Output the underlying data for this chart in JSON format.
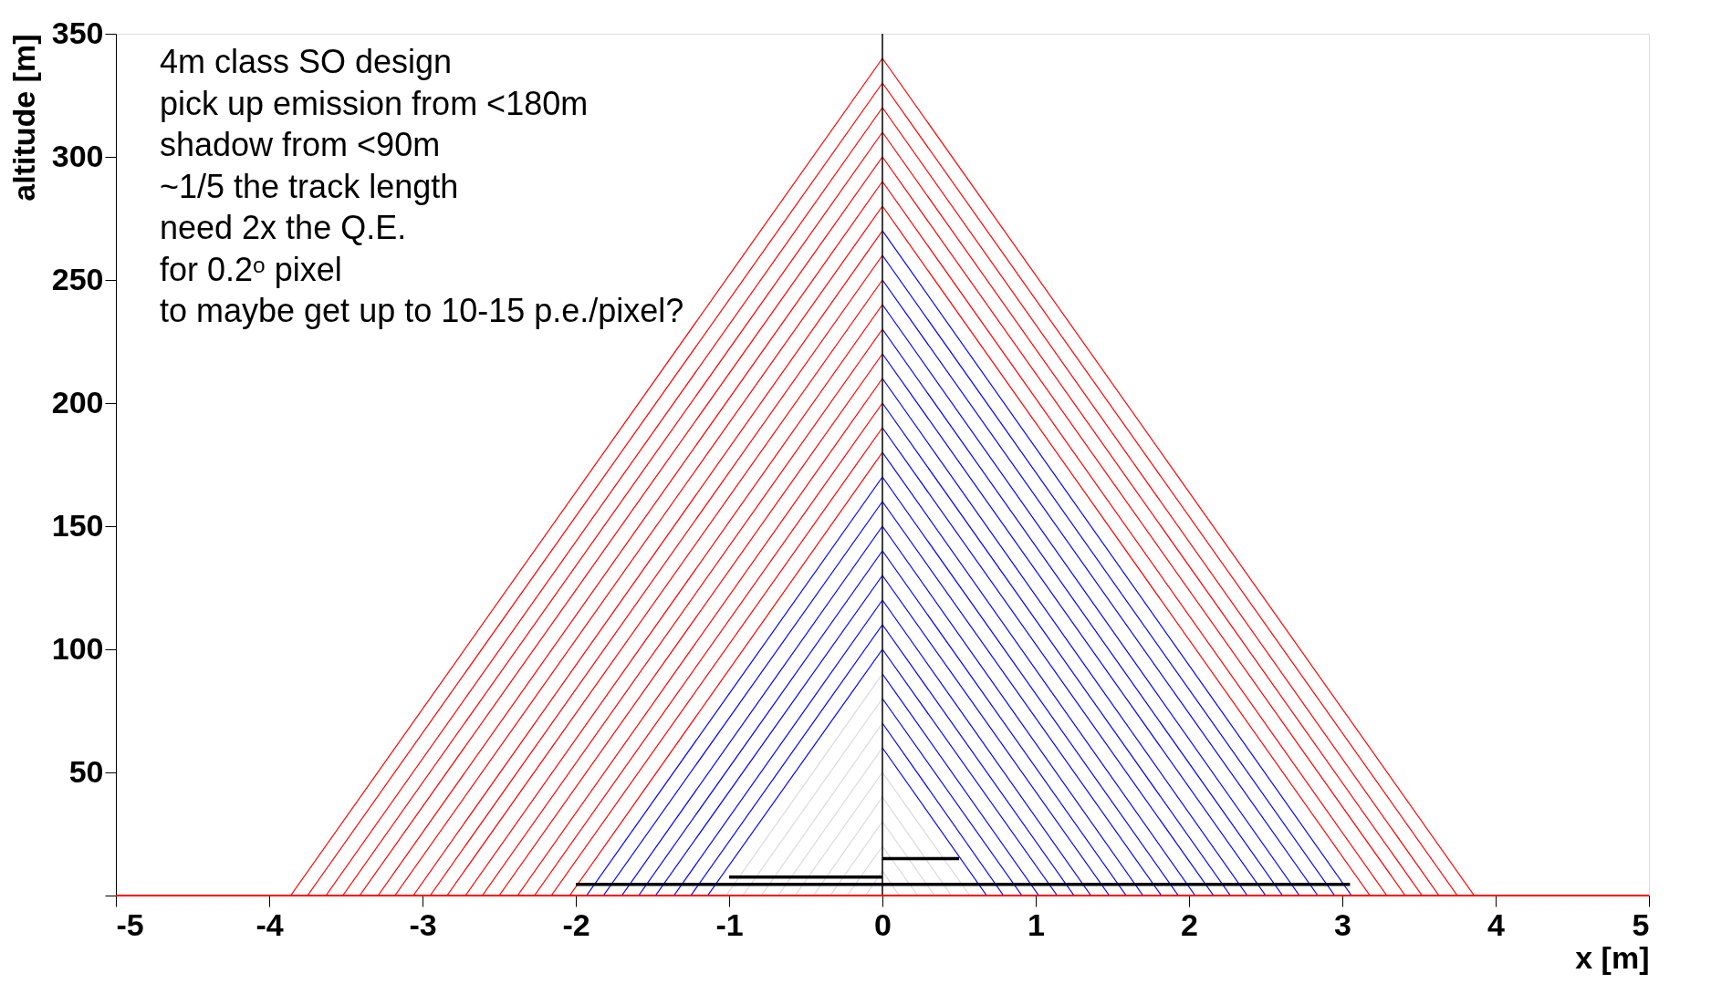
{
  "chart_data": {
    "type": "line",
    "xlabel": "x [m]",
    "ylabel": "altitude [m]",
    "xlim": [
      -5,
      5
    ],
    "xticks": [
      -5,
      -4,
      -3,
      -2,
      -1,
      0,
      1,
      2,
      3,
      4,
      5
    ],
    "ylim": [
      0,
      350
    ],
    "yticks": [
      {
        "value": 0,
        "label": null
      },
      50,
      100,
      150,
      200,
      250,
      300,
      350
    ],
    "grid": false,
    "annotations": [
      "4m class SO design",
      "pick up emission from <180m",
      "shadow from <90m",
      "~1/5 the track length",
      "need 2x the Q.E.",
      "for 0.2ᵒ pixel",
      "to maybe get up to 10-15 p.e./pixel?"
    ],
    "ref_lines": [
      {
        "axis": "x",
        "value": 0,
        "color": "#000000"
      },
      {
        "axis": "y",
        "value": 0,
        "color": "#ff0000"
      }
    ],
    "series": [
      {
        "color": "#ff0000",
        "x": [
          -3.86,
          0
        ],
        "values": [
          0,
          340
        ]
      },
      {
        "color": "#ff0000",
        "x": [
          -3.75,
          0
        ],
        "values": [
          0,
          330
        ]
      },
      {
        "color": "#ff0000",
        "x": [
          -3.63,
          0
        ],
        "values": [
          0,
          320
        ]
      },
      {
        "color": "#ff0000",
        "x": [
          -3.52,
          0
        ],
        "values": [
          0,
          310
        ]
      },
      {
        "color": "#ff0000",
        "x": [
          -3.41,
          0
        ],
        "values": [
          0,
          300
        ]
      },
      {
        "color": "#ff0000",
        "x": [
          -3.29,
          0
        ],
        "values": [
          0,
          290
        ]
      },
      {
        "color": "#ff0000",
        "x": [
          -3.18,
          0
        ],
        "values": [
          0,
          280
        ]
      },
      {
        "color": "#ff0000",
        "x": [
          -3.06,
          0
        ],
        "values": [
          0,
          270
        ]
      },
      {
        "color": "#ff0000",
        "x": [
          -2.95,
          0
        ],
        "values": [
          0,
          260
        ]
      },
      {
        "color": "#ff0000",
        "x": [
          -2.84,
          0
        ],
        "values": [
          0,
          250
        ]
      },
      {
        "color": "#ff0000",
        "x": [
          -2.72,
          0
        ],
        "values": [
          0,
          240
        ]
      },
      {
        "color": "#ff0000",
        "x": [
          -2.61,
          0
        ],
        "values": [
          0,
          230
        ]
      },
      {
        "color": "#ff0000",
        "x": [
          -2.5,
          0
        ],
        "values": [
          0,
          220
        ]
      },
      {
        "color": "#ff0000",
        "x": [
          -2.38,
          0
        ],
        "values": [
          0,
          210
        ]
      },
      {
        "color": "#ff0000",
        "x": [
          -2.27,
          0
        ],
        "values": [
          0,
          200
        ]
      },
      {
        "color": "#ff0000",
        "x": [
          -2.16,
          0
        ],
        "values": [
          0,
          190
        ]
      },
      {
        "color": "#ff0000",
        "x": [
          -2.04,
          0
        ],
        "values": [
          0,
          180
        ]
      },
      {
        "color": "#0000ff",
        "x": [
          -1.93,
          0
        ],
        "values": [
          0,
          170
        ]
      },
      {
        "color": "#0000ff",
        "x": [
          -1.82,
          0
        ],
        "values": [
          0,
          160
        ]
      },
      {
        "color": "#0000ff",
        "x": [
          -1.7,
          0
        ],
        "values": [
          0,
          150
        ]
      },
      {
        "color": "#0000ff",
        "x": [
          -1.59,
          0
        ],
        "values": [
          0,
          140
        ]
      },
      {
        "color": "#0000ff",
        "x": [
          -1.48,
          0
        ],
        "values": [
          0,
          130
        ]
      },
      {
        "color": "#0000ff",
        "x": [
          -1.36,
          0
        ],
        "values": [
          0,
          120
        ]
      },
      {
        "color": "#0000ff",
        "x": [
          -1.25,
          0
        ],
        "values": [
          0,
          110
        ]
      },
      {
        "color": "#0000ff",
        "x": [
          -1.14,
          0
        ],
        "values": [
          0,
          100
        ]
      },
      {
        "color": "#d9d9d9",
        "x": [
          -1.02,
          0
        ],
        "values": [
          0,
          90
        ]
      },
      {
        "color": "#d9d9d9",
        "x": [
          -0.91,
          0
        ],
        "values": [
          0,
          80
        ]
      },
      {
        "color": "#d9d9d9",
        "x": [
          -0.79,
          0
        ],
        "values": [
          0,
          70
        ]
      },
      {
        "color": "#d9d9d9",
        "x": [
          -0.68,
          0
        ],
        "values": [
          0,
          60
        ]
      },
      {
        "color": "#d9d9d9",
        "x": [
          -0.57,
          0
        ],
        "values": [
          0,
          50
        ]
      },
      {
        "color": "#d9d9d9",
        "x": [
          -0.45,
          0
        ],
        "values": [
          0,
          40
        ]
      },
      {
        "color": "#d9d9d9",
        "x": [
          -0.34,
          0
        ],
        "values": [
          0,
          30
        ]
      },
      {
        "color": "#d9d9d9",
        "x": [
          -0.23,
          0
        ],
        "values": [
          0,
          20
        ]
      },
      {
        "color": "#d9d9d9",
        "x": [
          -0.11,
          0
        ],
        "values": [
          0,
          10
        ]
      },
      {
        "color": "#ff0000",
        "x": [
          0,
          3.86
        ],
        "values": [
          340,
          0
        ]
      },
      {
        "color": "#ff0000",
        "x": [
          0,
          3.75
        ],
        "values": [
          330,
          0
        ]
      },
      {
        "color": "#ff0000",
        "x": [
          0,
          3.63
        ],
        "values": [
          320,
          0
        ]
      },
      {
        "color": "#ff0000",
        "x": [
          0,
          3.52
        ],
        "values": [
          310,
          0
        ]
      },
      {
        "color": "#ff0000",
        "x": [
          0,
          3.41
        ],
        "values": [
          300,
          0
        ]
      },
      {
        "color": "#ff0000",
        "x": [
          0,
          3.29
        ],
        "values": [
          290,
          0
        ]
      },
      {
        "color": "#ff0000",
        "x": [
          0,
          3.18
        ],
        "values": [
          280,
          0
        ]
      },
      {
        "color": "#0000ff",
        "x": [
          0,
          3.06
        ],
        "values": [
          270,
          0
        ]
      },
      {
        "color": "#0000ff",
        "x": [
          0,
          2.95
        ],
        "values": [
          260,
          0
        ]
      },
      {
        "color": "#0000ff",
        "x": [
          0,
          2.84
        ],
        "values": [
          250,
          0
        ]
      },
      {
        "color": "#0000ff",
        "x": [
          0,
          2.72
        ],
        "values": [
          240,
          0
        ]
      },
      {
        "color": "#0000ff",
        "x": [
          0,
          2.61
        ],
        "values": [
          230,
          0
        ]
      },
      {
        "color": "#0000ff",
        "x": [
          0,
          2.5
        ],
        "values": [
          220,
          0
        ]
      },
      {
        "color": "#0000ff",
        "x": [
          0,
          2.38
        ],
        "values": [
          210,
          0
        ]
      },
      {
        "color": "#0000ff",
        "x": [
          0,
          2.27
        ],
        "values": [
          200,
          0
        ]
      },
      {
        "color": "#0000ff",
        "x": [
          0,
          2.16
        ],
        "values": [
          190,
          0
        ]
      },
      {
        "color": "#0000ff",
        "x": [
          0,
          2.04
        ],
        "values": [
          180,
          0
        ]
      },
      {
        "color": "#0000ff",
        "x": [
          0,
          1.93
        ],
        "values": [
          170,
          0
        ]
      },
      {
        "color": "#0000ff",
        "x": [
          0,
          1.82
        ],
        "values": [
          160,
          0
        ]
      },
      {
        "color": "#0000ff",
        "x": [
          0,
          1.7
        ],
        "values": [
          150,
          0
        ]
      },
      {
        "color": "#0000ff",
        "x": [
          0,
          1.59
        ],
        "values": [
          140,
          0
        ]
      },
      {
        "color": "#0000ff",
        "x": [
          0,
          1.48
        ],
        "values": [
          130,
          0
        ]
      },
      {
        "color": "#0000ff",
        "x": [
          0,
          1.36
        ],
        "values": [
          120,
          0
        ]
      },
      {
        "color": "#0000ff",
        "x": [
          0,
          1.25
        ],
        "values": [
          110,
          0
        ]
      },
      {
        "color": "#0000ff",
        "x": [
          0,
          1.14
        ],
        "values": [
          100,
          0
        ]
      },
      {
        "color": "#0000ff",
        "x": [
          0,
          1.02
        ],
        "values": [
          90,
          0
        ]
      },
      {
        "color": "#0000ff",
        "x": [
          0,
          0.91
        ],
        "values": [
          80,
          0
        ]
      },
      {
        "color": "#0000ff",
        "x": [
          0,
          0.79
        ],
        "values": [
          70,
          0
        ]
      },
      {
        "color": "#0000ff",
        "x": [
          0,
          0.68
        ],
        "values": [
          60,
          0
        ]
      },
      {
        "color": "#d9d9d9",
        "x": [
          0,
          0.57
        ],
        "values": [
          50,
          0
        ]
      },
      {
        "color": "#d9d9d9",
        "x": [
          0,
          0.45
        ],
        "values": [
          40,
          0
        ]
      },
      {
        "color": "#d9d9d9",
        "x": [
          0,
          0.34
        ],
        "values": [
          30,
          0
        ]
      },
      {
        "color": "#d9d9d9",
        "x": [
          0,
          0.23
        ],
        "values": [
          20,
          0
        ]
      },
      {
        "color": "#d9d9d9",
        "x": [
          0,
          0.11
        ],
        "values": [
          10,
          0
        ]
      },
      {
        "color": "#000000",
        "x": [
          -2,
          3.05
        ],
        "values": [
          4.5,
          4.5
        ]
      },
      {
        "color": "#000000",
        "x": [
          -1,
          0
        ],
        "values": [
          7.5,
          7.5
        ]
      },
      {
        "color": "#000000",
        "x": [
          0,
          0.5
        ],
        "values": [
          15,
          15
        ]
      }
    ]
  }
}
